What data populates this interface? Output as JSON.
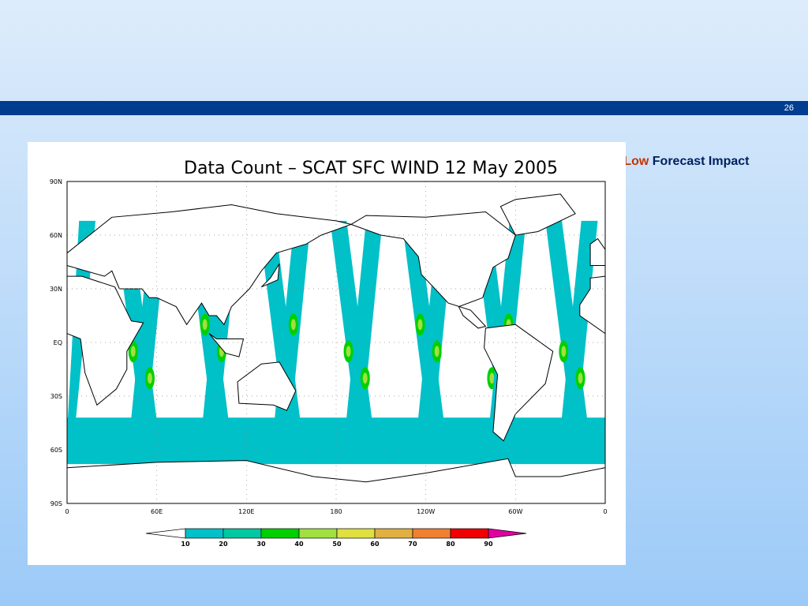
{
  "slide_number": "26",
  "heading": {
    "impact_level": "Med-Low",
    "impact_label": "Forecast Impact"
  },
  "map": {
    "title": "Data Count – SCAT SFC WIND  12 May 2005",
    "lat_labels": [
      "90N",
      "60N",
      "30N",
      "EQ",
      "30S",
      "60S",
      "90S"
    ],
    "lon_labels": [
      "0",
      "60E",
      "120E",
      "180",
      "120W",
      "60W",
      "0"
    ],
    "colorbar_labels": [
      "10",
      "20",
      "30",
      "40",
      "50",
      "60",
      "70",
      "80",
      "90"
    ]
  }
}
